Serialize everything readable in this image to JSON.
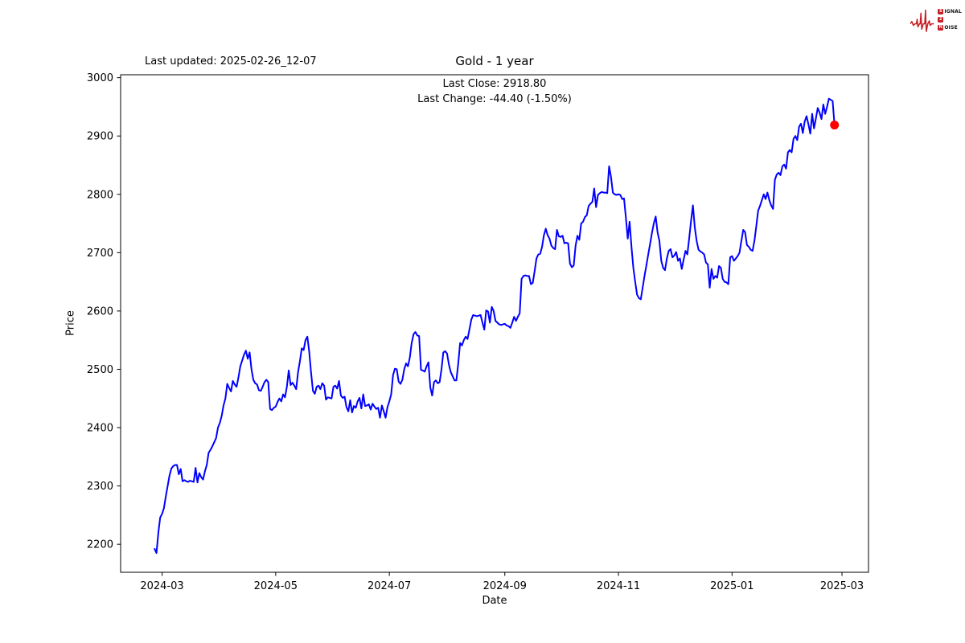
{
  "header": {
    "last_updated": "Last updated: 2025-02-26_12-07"
  },
  "logo": {
    "name": "Signal 2 Noise",
    "color": "#c52026",
    "rows": [
      {
        "boxed": "S",
        "rest": "IGNAL"
      },
      {
        "boxed": "2",
        "rest": ""
      },
      {
        "boxed": "N",
        "rest": "OISE"
      }
    ]
  },
  "chart_data": {
    "type": "line",
    "title": "Gold - 1 year",
    "xlabel": "Date",
    "ylabel": "Price",
    "annotations": [
      "Last Close: 2918.80",
      "Last Change: -44.40 (-1.50%)"
    ],
    "last_close": 2918.8,
    "last_change": -44.4,
    "last_change_pct": -1.5,
    "grid": false,
    "legend": false,
    "line": {
      "color": "#0000ff",
      "width": 2
    },
    "marker": {
      "color": "#ff0000",
      "radius": 5.5,
      "day": 365,
      "value": 2918.8
    },
    "x_unit": "days since 2024-02-26",
    "xlim_days": [
      -18.25,
      383.25
    ],
    "ylim": [
      2152,
      3005
    ],
    "y_ticks": [
      2200,
      2300,
      2400,
      2500,
      2600,
      2700,
      2800,
      2900,
      3000
    ],
    "x_ticks": [
      {
        "day": 4,
        "label": "2024-03"
      },
      {
        "day": 65,
        "label": "2024-05"
      },
      {
        "day": 126,
        "label": "2024-07"
      },
      {
        "day": 188,
        "label": "2024-09"
      },
      {
        "day": 249,
        "label": "2024-11"
      },
      {
        "day": 310,
        "label": "2025-01"
      },
      {
        "day": 369,
        "label": "2025-03"
      }
    ],
    "series": [
      {
        "name": "Gold",
        "values": [
          2192,
          2185,
          2220,
          2246,
          2252,
          2262,
          2282,
          2300,
          2318,
          2330,
          2334,
          2336,
          2336,
          2320,
          2329,
          2308,
          2310,
          2308,
          2307,
          2309,
          2308,
          2307,
          2331,
          2306,
          2322,
          2315,
          2311,
          2325,
          2336,
          2357,
          2362,
          2368,
          2375,
          2382,
          2400,
          2408,
          2420,
          2438,
          2450,
          2475,
          2468,
          2462,
          2480,
          2474,
          2470,
          2486,
          2505,
          2515,
          2525,
          2532,
          2518,
          2529,
          2500,
          2482,
          2476,
          2474,
          2464,
          2463,
          2470,
          2478,
          2482,
          2478,
          2432,
          2430,
          2434,
          2436,
          2444,
          2450,
          2445,
          2457,
          2452,
          2470,
          2498,
          2473,
          2477,
          2472,
          2466,
          2495,
          2514,
          2536,
          2533,
          2550,
          2556,
          2530,
          2494,
          2463,
          2458,
          2470,
          2472,
          2466,
          2476,
          2472,
          2448,
          2452,
          2451,
          2450,
          2470,
          2472,
          2467,
          2480,
          2455,
          2451,
          2453,
          2435,
          2428,
          2447,
          2426,
          2437,
          2434,
          2445,
          2451,
          2433,
          2457,
          2437,
          2438,
          2440,
          2431,
          2441,
          2436,
          2432,
          2434,
          2417,
          2438,
          2428,
          2417,
          2435,
          2445,
          2457,
          2490,
          2501,
          2500,
          2479,
          2475,
          2482,
          2500,
          2510,
          2505,
          2520,
          2545,
          2560,
          2564,
          2558,
          2557,
          2499,
          2498,
          2496,
          2505,
          2512,
          2469,
          2455,
          2478,
          2481,
          2476,
          2478,
          2500,
          2529,
          2531,
          2527,
          2508,
          2495,
          2488,
          2481,
          2481,
          2510,
          2545,
          2541,
          2550,
          2556,
          2552,
          2568,
          2585,
          2593,
          2592,
          2591,
          2592,
          2593,
          2580,
          2568,
          2601,
          2599,
          2580,
          2607,
          2600,
          2583,
          2580,
          2577,
          2576,
          2577,
          2578,
          2575,
          2574,
          2571,
          2580,
          2590,
          2583,
          2590,
          2596,
          2655,
          2660,
          2661,
          2660,
          2660,
          2646,
          2648,
          2668,
          2690,
          2697,
          2698,
          2710,
          2730,
          2741,
          2730,
          2724,
          2712,
          2708,
          2706,
          2739,
          2728,
          2727,
          2729,
          2716,
          2717,
          2716,
          2681,
          2675,
          2678,
          2712,
          2729,
          2722,
          2750,
          2753,
          2761,
          2764,
          2780,
          2784,
          2787,
          2810,
          2778,
          2799,
          2802,
          2804,
          2803,
          2803,
          2802,
          2848,
          2830,
          2803,
          2800,
          2799,
          2800,
          2799,
          2792,
          2793,
          2760,
          2724,
          2753,
          2710,
          2674,
          2650,
          2628,
          2622,
          2620,
          2640,
          2660,
          2678,
          2697,
          2715,
          2734,
          2750,
          2762,
          2735,
          2720,
          2686,
          2674,
          2670,
          2690,
          2703,
          2706,
          2692,
          2695,
          2701,
          2686,
          2690,
          2672,
          2688,
          2703,
          2697,
          2725,
          2755,
          2781,
          2743,
          2720,
          2705,
          2702,
          2700,
          2697,
          2683,
          2680,
          2640,
          2672,
          2655,
          2660,
          2657,
          2677,
          2674,
          2655,
          2650,
          2649,
          2646,
          2692,
          2694,
          2686,
          2690,
          2694,
          2700,
          2720,
          2739,
          2735,
          2713,
          2710,
          2705,
          2703,
          2720,
          2745,
          2772,
          2780,
          2790,
          2800,
          2792,
          2803,
          2790,
          2781,
          2775,
          2825,
          2834,
          2837,
          2833,
          2848,
          2851,
          2844,
          2872,
          2876,
          2872,
          2895,
          2900,
          2893,
          2916,
          2921,
          2905,
          2925,
          2934,
          2920,
          2904,
          2938,
          2913,
          2930,
          2948,
          2940,
          2929,
          2954,
          2938,
          2950,
          2964,
          2962,
          2960,
          2918.8
        ]
      }
    ]
  }
}
